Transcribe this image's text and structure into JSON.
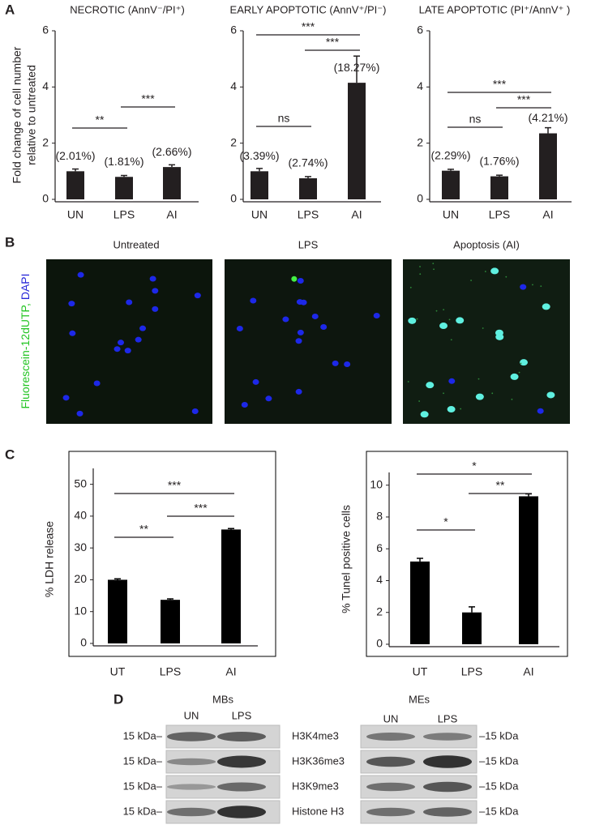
{
  "chart_data": [
    {
      "type": "bar",
      "title": "NECROTIC (AnnV⁻/PI⁺)",
      "ylabel": [
        "Fold change of cell number",
        "relative to untreated"
      ],
      "categories": [
        "UN",
        "LPS",
        "AI"
      ],
      "values": [
        1.0,
        0.8,
        1.15
      ],
      "errors": [
        0.08,
        0.05,
        0.08
      ],
      "bar_annotations": [
        "(2.01%)",
        "(1.81%)",
        "(2.66%)"
      ],
      "significance": [
        {
          "from": "UN",
          "to": "LPS",
          "label": "**"
        },
        {
          "from": "LPS",
          "to": "AI",
          "label": "***"
        }
      ],
      "color": "#231f20",
      "ylim": [
        0,
        6
      ],
      "yticks": [
        0,
        2,
        4,
        6
      ],
      "frame": false
    },
    {
      "type": "bar",
      "title": "EARLY APOPTOTIC (AnnV⁺/PI⁻)",
      "categories": [
        "UN",
        "LPS",
        "AI"
      ],
      "values": [
        1.0,
        0.75,
        4.15
      ],
      "errors": [
        0.1,
        0.06,
        0.95
      ],
      "bar_annotations": [
        "(3.39%)",
        "(2.74%)",
        "(18.27%)"
      ],
      "significance": [
        {
          "from": "UN",
          "to": "LPS",
          "label": "ns"
        },
        {
          "from": "LPS",
          "to": "AI",
          "label": "***"
        },
        {
          "from": "UN",
          "to": "AI",
          "label": "***"
        }
      ],
      "color": "#231f20",
      "ylim": [
        0,
        6
      ],
      "yticks": [
        0,
        2,
        4,
        6
      ],
      "frame": false
    },
    {
      "type": "bar",
      "title": "LATE APOPTOTIC (PI⁺/AnnV⁺ )",
      "categories": [
        "UN",
        "LPS",
        "AI"
      ],
      "values": [
        1.02,
        0.82,
        2.35
      ],
      "errors": [
        0.05,
        0.04,
        0.2
      ],
      "bar_annotations": [
        "(2.29%)",
        "(1.76%)",
        "(4.21%)"
      ],
      "significance": [
        {
          "from": "UN",
          "to": "LPS",
          "label": "ns"
        },
        {
          "from": "LPS",
          "to": "AI",
          "label": "***"
        },
        {
          "from": "UN",
          "to": "AI",
          "label": "***"
        }
      ],
      "color": "#231f20",
      "ylim": [
        0,
        6
      ],
      "yticks": [
        0,
        2,
        4,
        6
      ],
      "frame": false
    },
    {
      "type": "bar",
      "ylabel": [
        "% LDH release"
      ],
      "categories": [
        "UT",
        "LPS",
        "AI"
      ],
      "values": [
        20,
        13.7,
        35.8
      ],
      "errors": [
        0.3,
        0.3,
        0.3
      ],
      "significance": [
        {
          "from": "UT",
          "to": "LPS",
          "label": "**"
        },
        {
          "from": "LPS",
          "to": "AI",
          "label": "***"
        },
        {
          "from": "UT",
          "to": "AI",
          "label": "***"
        }
      ],
      "color": "#000000",
      "ylim": [
        0,
        55
      ],
      "yticks": [
        0,
        10,
        20,
        30,
        40,
        50
      ],
      "frame": true
    },
    {
      "type": "bar",
      "ylabel": [
        "% Tunel positive cells"
      ],
      "categories": [
        "UT",
        "LPS",
        "AI"
      ],
      "values": [
        5.2,
        2.0,
        9.3
      ],
      "errors": [
        0.2,
        0.35,
        0.15
      ],
      "significance": [
        {
          "from": "UT",
          "to": "LPS",
          "label": "*"
        },
        {
          "from": "LPS",
          "to": "AI",
          "label": "**"
        },
        {
          "from": "UT",
          "to": "AI",
          "label": "*"
        }
      ],
      "color": "#000000",
      "ylim": [
        0,
        10.8
      ],
      "yticks": [
        0,
        2,
        4,
        6,
        8,
        10
      ],
      "frame": true
    }
  ],
  "panel_labels": [
    "A",
    "B",
    "C",
    "D"
  ],
  "microscopy": {
    "titles": [
      "Untreated",
      "LPS",
      "Apoptosis (AI)"
    ],
    "stain_green": "Fluorescein-12dUTP,",
    "stain_blue": " DAPI"
  },
  "western_blot": {
    "groups": [
      "MBs",
      "MEs"
    ],
    "lanes": [
      "UN",
      "LPS"
    ],
    "rows": [
      "H3K4me3",
      "H3K36me3",
      "H3K9me3",
      "Histone H3"
    ],
    "marker_left": "15 kDa–",
    "marker_right": "–15 kDa"
  }
}
